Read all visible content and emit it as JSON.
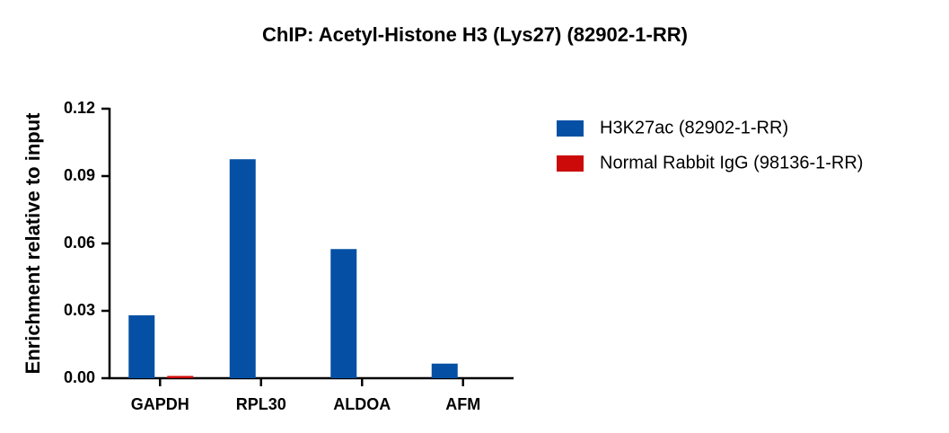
{
  "chart_data": {
    "type": "bar",
    "title": "ChIP: Acetyl-Histone H3 (Lys27) (82902-1-RR)",
    "ylabel": "Enrichment relative to input",
    "categories": [
      "GAPDH",
      "RPL30",
      "ALDOA",
      "AFM"
    ],
    "series": [
      {
        "name": "H3K27ac (82902-1-RR)",
        "color": "#0550a5",
        "values": [
          0.028,
          0.0975,
          0.0575,
          0.0065
        ]
      },
      {
        "name": "Normal Rabbit IgG (98136-1-RR)",
        "color": "#cc0a0a",
        "values": [
          0.001,
          0,
          0,
          0
        ]
      }
    ],
    "ylim": [
      0,
      0.12
    ],
    "yticks": [
      {
        "value": 0,
        "label": "0.00"
      },
      0.03,
      0.06,
      0.09,
      0.12
    ],
    "grid": false,
    "legend": "right"
  }
}
